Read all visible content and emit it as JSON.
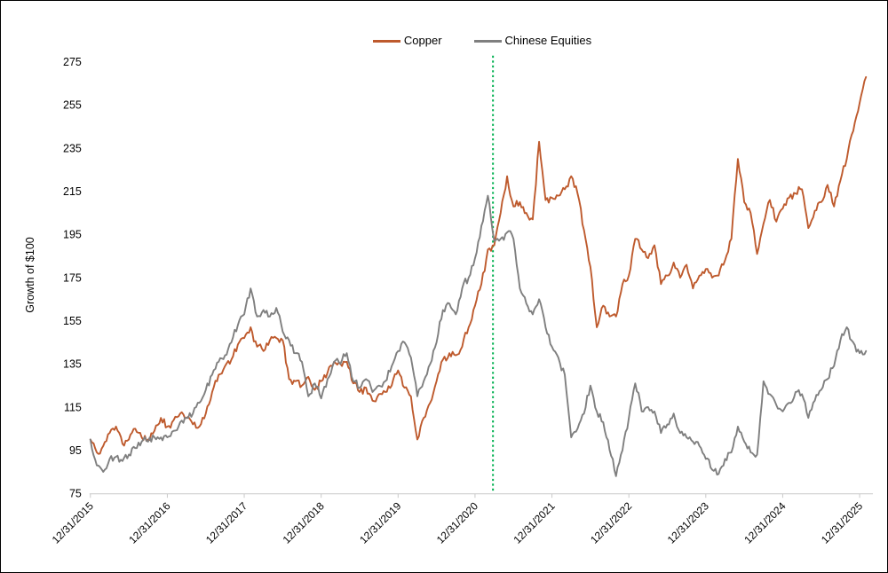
{
  "figure": {
    "background": "#ffffff",
    "border_color": "#000000"
  },
  "legend": {
    "items": [
      {
        "label": "Copper",
        "color": "#be5a2d"
      },
      {
        "label": "Chinese Equities",
        "color": "#7f7f7f"
      }
    ]
  },
  "y_axis": {
    "title": "Growth of $100",
    "min": 75,
    "max": 275,
    "tick_step": 20,
    "ticks": [
      275,
      255,
      235,
      215,
      195,
      175,
      155,
      135,
      115,
      95,
      75
    ]
  },
  "x_axis": {
    "tick_labels": [
      "12/31/2015",
      "12/31/2016",
      "12/31/2017",
      "12/31/2018",
      "12/31/2019",
      "12/31/2020",
      "12/31/2021",
      "12/31/2022",
      "12/31/2023",
      "12/31/2024",
      "12/31/2025"
    ],
    "axis_color": "#c9c9c9"
  },
  "event_line": {
    "color": "#00b050",
    "style": "dotted",
    "x_month": 62.8
  },
  "chart_data": {
    "type": "line",
    "title": "",
    "xlabel": "",
    "ylabel": "Growth of $100",
    "ylim": [
      75,
      275
    ],
    "grid": false,
    "legend_position": "top-center",
    "x_unit": "months since 12/31/2015",
    "x_months": {
      "start": 0,
      "step": 1,
      "count": 122
    },
    "x_tick_months": [
      0,
      12,
      24,
      36,
      48,
      60,
      72,
      84,
      96,
      108,
      120
    ],
    "x_tick_labels": [
      "12/31/2015",
      "12/31/2016",
      "12/31/2017",
      "12/31/2018",
      "12/31/2019",
      "12/31/2020",
      "12/31/2021",
      "12/31/2022",
      "12/31/2023",
      "12/31/2024",
      "12/31/2025"
    ],
    "series": [
      {
        "name": "Copper",
        "color": "#be5a2d",
        "values": [
          100,
          94,
          97,
          103,
          106,
          98,
          100,
          105,
          101,
          100,
          104,
          110,
          106,
          109,
          112,
          110,
          107,
          106,
          112,
          122,
          130,
          134,
          137,
          144,
          147,
          152,
          143,
          141,
          146,
          147,
          146,
          128,
          127,
          125,
          129,
          123,
          127,
          131,
          136,
          135,
          136,
          126,
          122,
          124,
          118,
          121,
          122,
          125,
          132,
          124,
          120,
          100,
          110,
          117,
          127,
          137,
          140,
          139,
          143,
          152,
          162,
          172,
          188,
          190,
          205,
          222,
          208,
          210,
          205,
          202,
          238,
          211,
          212,
          213,
          216,
          222,
          214,
          197,
          180,
          152,
          162,
          157,
          157,
          172,
          176,
          193,
          188,
          184,
          190,
          172,
          176,
          182,
          175,
          181,
          170,
          176,
          179,
          175,
          176,
          183,
          193,
          230,
          210,
          205,
          186,
          200,
          211,
          201,
          207,
          212,
          214,
          216,
          198,
          206,
          210,
          218,
          208,
          220,
          230,
          243,
          256,
          268
        ]
      },
      {
        "name": "Chinese Equities",
        "color": "#7f7f7f",
        "values": [
          100,
          88,
          85,
          91,
          92,
          90,
          93,
          96,
          99,
          99,
          101,
          101,
          101,
          104,
          108,
          110,
          112,
          117,
          123,
          130,
          136,
          139,
          145,
          153,
          158,
          170,
          157,
          160,
          157,
          161,
          150,
          146,
          140,
          136,
          120,
          126,
          119,
          128,
          136,
          135,
          140,
          127,
          124,
          128,
          122,
          125,
          127,
          134,
          141,
          145,
          138,
          120,
          127,
          135,
          145,
          160,
          163,
          158,
          170,
          175,
          184,
          199,
          213,
          192,
          193,
          196,
          193,
          170,
          163,
          158,
          165,
          152,
          143,
          138,
          130,
          101,
          105,
          112,
          125,
          113,
          108,
          95,
          83,
          95,
          110,
          126,
          113,
          115,
          113,
          103,
          107,
          112,
          103,
          101,
          99,
          97,
          91,
          86,
          84,
          91,
          94,
          106,
          99,
          94,
          93,
          127,
          121,
          116,
          113,
          117,
          122,
          121,
          110,
          118,
          123,
          128,
          134,
          146,
          152,
          145,
          140,
          141
        ]
      }
    ],
    "annotations": [
      {
        "type": "vline",
        "x_month": 62.8,
        "color": "#00b050",
        "style": "dotted"
      }
    ]
  }
}
